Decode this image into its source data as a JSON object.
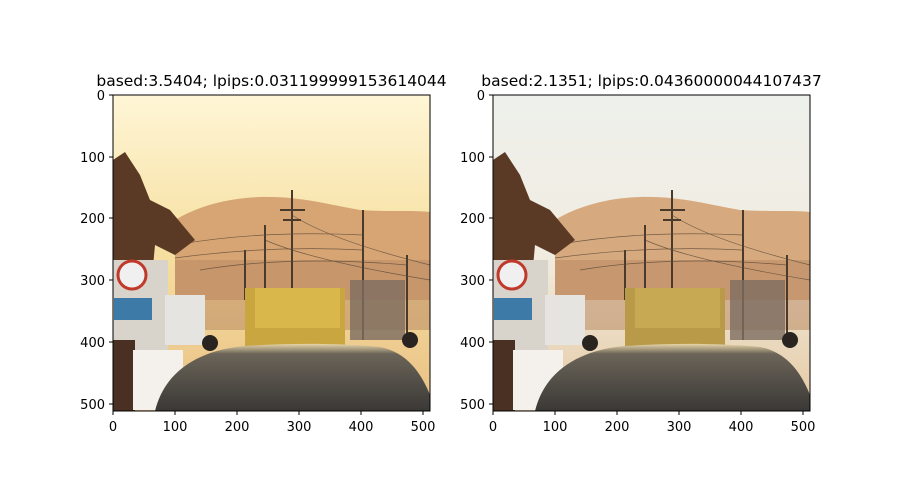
{
  "figure": {
    "panels": [
      {
        "title": "based:3.5404; lpips:0.031199999153614044",
        "sky_top": "#fff6d6",
        "sky_mid": "#f6dfa0",
        "sky_low": "#e9bf85",
        "mountain": "#d7a574",
        "xticks": [
          "0",
          "100",
          "200",
          "300",
          "400",
          "500"
        ],
        "yticks": [
          "0",
          "100",
          "200",
          "300",
          "400",
          "500"
        ]
      },
      {
        "title": "based:2.1351; lpips:0.04360000044107437",
        "sky_top": "#eef0ec",
        "sky_mid": "#f1ece0",
        "sky_low": "#e5c9a3",
        "mountain": "#d7a97e",
        "xticks": [
          "0",
          "100",
          "200",
          "300",
          "400",
          "500"
        ],
        "yticks": [
          "0",
          "100",
          "200",
          "300",
          "400",
          "500"
        ]
      }
    ]
  }
}
